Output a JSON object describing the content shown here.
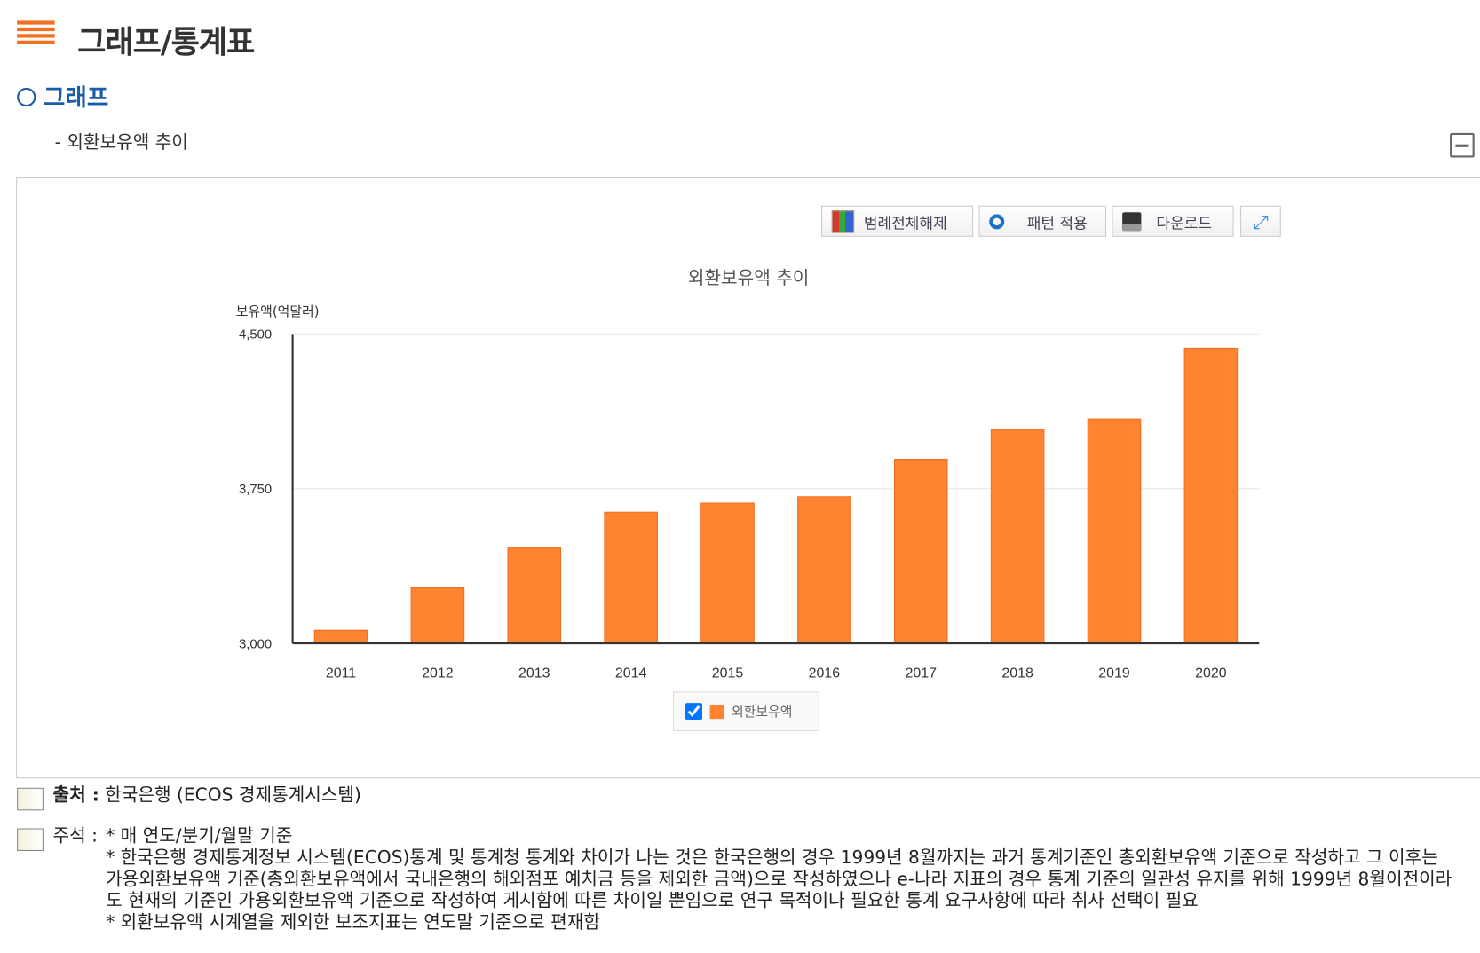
{
  "header": {
    "title": "그래프/통계표",
    "section": "그래프",
    "subtitle": "- 외환보유액 추이"
  },
  "toolbar": {
    "legend_off": "범례전체해제",
    "pattern": "패턴 적용",
    "download": "다운로드"
  },
  "legend": {
    "label": "외환보유액",
    "checked": true
  },
  "colors": {
    "bar": "#ff8330",
    "accent": "#1a5ca8"
  },
  "chart_data": {
    "type": "bar",
    "title": "외환보유액 추이",
    "ylabel": "보유액(억달러)",
    "xlabel": "",
    "categories": [
      "2011",
      "2012",
      "2013",
      "2014",
      "2015",
      "2016",
      "2017",
      "2018",
      "2019",
      "2020"
    ],
    "series": [
      {
        "name": "외환보유액",
        "values": [
          3064,
          3269,
          3465,
          3636,
          3680,
          3711,
          3893,
          4037,
          4088,
          4431
        ]
      }
    ],
    "ylim": [
      3000,
      4500
    ],
    "yticks": [
      3000,
      3750,
      4500
    ],
    "ytick_labels": [
      "3,000",
      "3,750",
      "4,500"
    ],
    "grid": true,
    "legend_position": "bottom"
  },
  "footer": {
    "source_label": "출처 :",
    "source": "한국은행 (ECOS 경제통계시스템)",
    "note_label": "주석 :",
    "notes": [
      "* 매 연도/분기/월말 기준",
      "* 한국은행 경제통계정보 시스템(ECOS)통계 및 통계청 통계와 차이가 나는 것은 한국은행의 경우 1999년 8월까지는 과거 통계기준인 총외환보유액 기준으로 작성하고 그 이후는 가용외환보유액 기준(총외환보유액에서 국내은행의 해외점포 예치금 등을 제외한 금액)으로 작성하였으나 e-나라 지표의 경우 통계 기준의 일관성 유지를 위해 1999년 8월이전이라도 현재의 기준인 가용외환보유액 기준으로 작성하여 게시함에 따른 차이일 뿐임으로 연구 목적이나 필요한 통계 요구사항에 따라 취사 선택이 필요",
      "* 외환보유액 시계열을 제외한 보조지표는 연도말 기준으로 편재함"
    ]
  }
}
